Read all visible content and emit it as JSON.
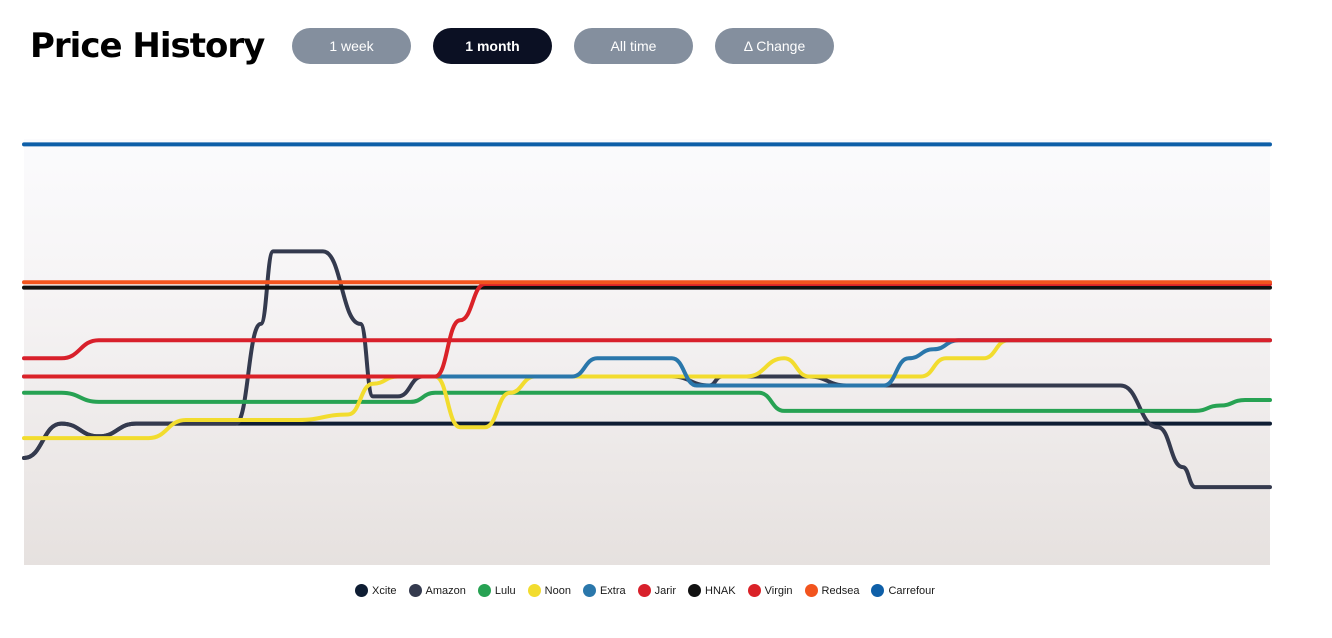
{
  "header": {
    "title": "Price History"
  },
  "range_tabs": [
    {
      "label": "1 week",
      "active": false
    },
    {
      "label": "1 month",
      "active": true
    },
    {
      "label": "All time",
      "active": false
    },
    {
      "label": "Δ Change",
      "active": false
    }
  ],
  "colors": {
    "tab_inactive": "#848f9e",
    "tab_active": "#0b1023"
  },
  "chart_data": {
    "type": "line",
    "grid": false,
    "legend_position": "bottom-center",
    "curve": "step-smooth",
    "t_range": [
      0,
      100
    ],
    "series": [
      {
        "name": "Xcite",
        "color": "#0e1d33",
        "points": [
          [
            0,
            24
          ],
          [
            3,
            43
          ],
          [
            6,
            36
          ],
          [
            9,
            43
          ],
          [
            100,
            43
          ]
        ]
      },
      {
        "name": "Amazon",
        "color": "#343a4e",
        "points": [
          [
            0,
            24
          ],
          [
            3,
            43
          ],
          [
            6,
            36
          ],
          [
            9,
            43
          ],
          [
            17,
            43
          ],
          [
            19,
            98
          ],
          [
            20,
            138
          ],
          [
            24,
            138
          ],
          [
            27,
            98
          ],
          [
            28,
            58
          ],
          [
            30,
            58
          ],
          [
            32,
            69
          ],
          [
            52,
            69
          ],
          [
            55,
            64
          ],
          [
            56,
            69
          ],
          [
            63,
            69
          ],
          [
            66,
            64
          ],
          [
            88,
            64
          ],
          [
            91,
            41
          ],
          [
            93,
            19
          ],
          [
            94,
            8
          ],
          [
            95,
            8
          ],
          [
            97,
            8
          ],
          [
            100,
            8
          ]
        ]
      },
      {
        "name": "Lulu",
        "color": "#27a253",
        "points": [
          [
            0,
            60
          ],
          [
            3,
            60
          ],
          [
            6,
            55
          ],
          [
            29,
            55
          ],
          [
            31,
            55
          ],
          [
            33,
            60
          ],
          [
            59,
            60
          ],
          [
            61,
            50
          ],
          [
            65,
            50
          ],
          [
            94,
            50
          ],
          [
            96,
            53
          ],
          [
            98,
            56
          ],
          [
            100,
            56
          ]
        ]
      },
      {
        "name": "Noon",
        "color": "#f2dc2e",
        "points": [
          [
            0,
            35
          ],
          [
            10,
            35
          ],
          [
            13,
            45
          ],
          [
            22,
            45
          ],
          [
            26,
            48
          ],
          [
            28,
            65
          ],
          [
            30,
            69
          ],
          [
            33,
            69
          ],
          [
            35,
            41
          ],
          [
            37,
            41
          ],
          [
            39,
            60
          ],
          [
            41,
            69
          ],
          [
            58,
            69
          ],
          [
            61,
            79
          ],
          [
            63,
            69
          ],
          [
            65,
            69
          ],
          [
            72,
            69
          ],
          [
            74,
            79
          ],
          [
            77,
            79
          ],
          [
            79,
            89
          ],
          [
            100,
            89
          ]
        ]
      },
      {
        "name": "Extra",
        "color": "#2a77ab",
        "points": [
          [
            0,
            69
          ],
          [
            34,
            69
          ],
          [
            44,
            69
          ],
          [
            46,
            79
          ],
          [
            52,
            79
          ],
          [
            54,
            64
          ],
          [
            69,
            64
          ],
          [
            71,
            79
          ],
          [
            73,
            84
          ],
          [
            75,
            89
          ],
          [
            100,
            89
          ]
        ]
      },
      {
        "name": "Jarir",
        "color": "#d8202b",
        "points": [
          [
            0,
            79
          ],
          [
            3,
            79
          ],
          [
            6,
            89
          ],
          [
            100,
            89
          ]
        ]
      },
      {
        "name": "HNAK",
        "color": "#111111",
        "points": [
          [
            0,
            118
          ],
          [
            100,
            118
          ]
        ]
      },
      {
        "name": "Virgin",
        "color": "#da2228",
        "points": [
          [
            0,
            69
          ],
          [
            33,
            69
          ],
          [
            35,
            100
          ],
          [
            37,
            120
          ],
          [
            100,
            120
          ]
        ]
      },
      {
        "name": "Redsea",
        "color": "#f2541e",
        "points": [
          [
            0,
            121
          ],
          [
            100,
            121
          ]
        ]
      },
      {
        "name": "Carrefour",
        "color": "#0e5fa8",
        "points": [
          [
            0,
            197
          ],
          [
            100,
            197
          ]
        ]
      }
    ],
    "ylim": [
      -35,
      200
    ]
  }
}
